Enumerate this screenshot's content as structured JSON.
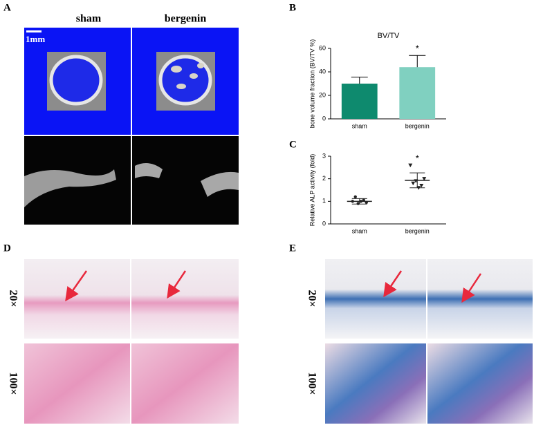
{
  "panels": {
    "A": {
      "label": "A",
      "groups": [
        "sham",
        "bergenin"
      ],
      "scale": "1mm"
    },
    "B": {
      "label": "B"
    },
    "C": {
      "label": "C"
    },
    "D": {
      "label": "D",
      "mags": [
        "20×",
        "100×"
      ]
    },
    "E": {
      "label": "E",
      "mags": [
        "20×",
        "100×"
      ]
    }
  },
  "chart_data": [
    {
      "type": "bar",
      "title": "BV/TV",
      "y_label": "bone volume fraction (BV/TV %)",
      "categories": [
        "sham",
        "bergenin"
      ],
      "values": [
        30,
        44
      ],
      "errors": [
        5.5,
        10
      ],
      "colors": [
        "#0e8a6e",
        "#80d0c0"
      ],
      "ylim": [
        0,
        60
      ],
      "yticks": [
        0,
        20,
        40,
        60
      ],
      "annotations": [
        null,
        "*"
      ]
    },
    {
      "type": "scatter",
      "y_label": "Relative ALP activity (fold)",
      "categories": [
        "sham",
        "bergenin"
      ],
      "values": [
        1.0,
        1.93
      ],
      "errors": [
        0.12,
        0.33
      ],
      "points": [
        [
          1.0,
          1.2,
          0.9,
          1.0,
          1.05,
          0.95
        ],
        [
          2.6,
          1.8,
          1.9,
          1.6,
          1.7,
          2.0
        ]
      ],
      "markers": [
        "circle",
        "triangle"
      ],
      "color": "#222222",
      "ylim": [
        0,
        3
      ],
      "yticks": [
        0,
        1,
        2,
        3
      ],
      "annotations": [
        null,
        "*"
      ]
    }
  ]
}
